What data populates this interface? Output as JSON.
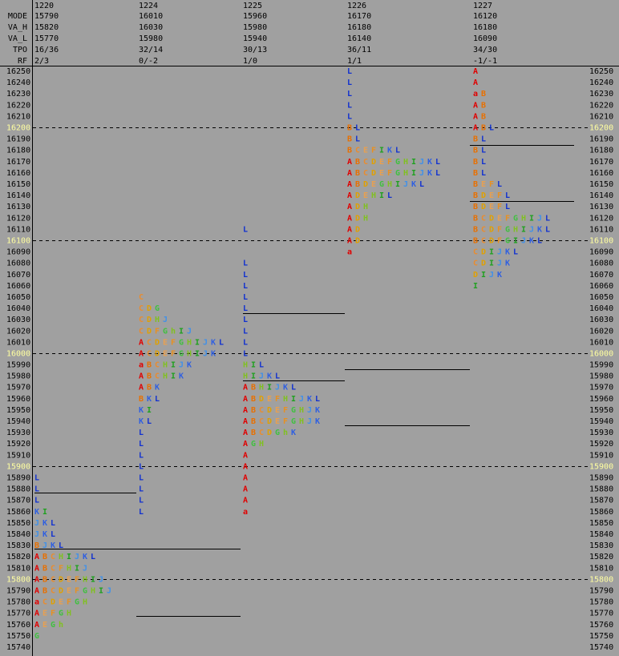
{
  "header": {
    "row_labels": [
      "MODE",
      "VA_H",
      "VA_L",
      "TPO",
      "RF"
    ],
    "days": [
      {
        "date": "1220",
        "values": [
          "15790",
          "15820",
          "15770",
          "16/36",
          "2/3"
        ]
      },
      {
        "date": "1224",
        "values": [
          "16010",
          "16030",
          "15980",
          "32/14",
          "0/-2"
        ]
      },
      {
        "date": "1225",
        "values": [
          "15960",
          "15980",
          "15940",
          "30/13",
          "1/0"
        ]
      },
      {
        "date": "1226",
        "values": [
          "16170",
          "16180",
          "16140",
          "36/11",
          "1/1"
        ]
      },
      {
        "date": "1227",
        "values": [
          "16120",
          "16180",
          "16090",
          "34/30",
          "-1/-1"
        ]
      }
    ]
  },
  "chart_data": {
    "type": "market-profile",
    "prices": [
      16250,
      16240,
      16230,
      16220,
      16210,
      16200,
      16190,
      16180,
      16170,
      16160,
      16150,
      16140,
      16130,
      16120,
      16110,
      16100,
      16090,
      16080,
      16070,
      16060,
      16050,
      16040,
      16030,
      16020,
      16010,
      16000,
      15990,
      15980,
      15970,
      15960,
      15950,
      15940,
      15930,
      15920,
      15910,
      15900,
      15890,
      15880,
      15870,
      15860,
      15850,
      15840,
      15830,
      15820,
      15810,
      15800,
      15790,
      15780,
      15770,
      15760,
      15750,
      15740
    ],
    "highlight": [
      16200,
      16100,
      16000,
      15900,
      15800
    ],
    "letter_colors": {
      "A": "#e00000",
      "B": "#e87000",
      "C": "#e88c30",
      "D": "#e0a000",
      "E": "#e8a050",
      "F": "#e89020",
      "G": "#40c040",
      "H": "#80c020",
      "I": "#20a020",
      "J": "#4090e8",
      "K": "#3060e0",
      "L": "#1030d0"
    },
    "profiles": [
      {
        "rows": [
          {
            "price": 15890,
            "tpo": [
              "L"
            ]
          },
          {
            "price": 15880,
            "tpo": [
              "L"
            ]
          },
          {
            "price": 15870,
            "tpo": [
              "L"
            ]
          },
          {
            "price": 15860,
            "tpo": [
              "K",
              "I"
            ]
          },
          {
            "price": 15850,
            "tpo": [
              "J",
              "K",
              "L"
            ]
          },
          {
            "price": 15840,
            "tpo": [
              "J",
              "K",
              "L"
            ]
          },
          {
            "price": 15830,
            "tpo": [
              "B",
              "J",
              "K",
              "L"
            ]
          },
          {
            "price": 15820,
            "tpo": [
              "A",
              "B",
              "C",
              "H",
              "I",
              "J",
              "K",
              "L"
            ]
          },
          {
            "price": 15810,
            "tpo": [
              "A",
              "B",
              "C",
              "F",
              "H",
              "I",
              "J"
            ]
          },
          {
            "price": 15800,
            "tpo": [
              "A",
              "B",
              "C",
              "D",
              "E",
              "F",
              "H",
              "I",
              "J"
            ]
          },
          {
            "price": 15790,
            "tpo": [
              "A",
              "B",
              "C",
              "D",
              "E",
              "F",
              "G",
              "H",
              "I",
              "J"
            ]
          },
          {
            "price": 15780,
            "tpo": [
              "a",
              "C",
              "D",
              "E",
              "F",
              "G",
              "H"
            ]
          },
          {
            "price": 15770,
            "tpo": [
              "A",
              "E",
              "F",
              "G",
              "H"
            ]
          },
          {
            "price": 15760,
            "tpo": [
              "A",
              "E",
              "G",
              "h"
            ]
          },
          {
            "price": 15750,
            "tpo": [
              "G"
            ]
          }
        ]
      },
      {
        "rows": [
          {
            "price": 16050,
            "tpo": [
              "C"
            ]
          },
          {
            "price": 16040,
            "tpo": [
              "C",
              "D",
              "G"
            ]
          },
          {
            "price": 16030,
            "tpo": [
              "C",
              "D",
              "H",
              "J"
            ]
          },
          {
            "price": 16020,
            "tpo": [
              "C",
              "D",
              "F",
              "G",
              "h",
              "I",
              "J"
            ]
          },
          {
            "price": 16010,
            "tpo": [
              "A",
              "C",
              "D",
              "E",
              "F",
              "G",
              "H",
              "I",
              "J",
              "K",
              "L"
            ]
          },
          {
            "price": 16000,
            "tpo": [
              "A",
              "C",
              "D",
              "E",
              "F",
              "G",
              "H",
              "I",
              "J",
              "K"
            ]
          },
          {
            "price": 15990,
            "tpo": [
              "a",
              "B",
              "C",
              "H",
              "I",
              "J",
              "K"
            ]
          },
          {
            "price": 15980,
            "tpo": [
              "A",
              "B",
              "C",
              "H",
              "I",
              "K"
            ]
          },
          {
            "price": 15970,
            "tpo": [
              "A",
              "B",
              "K"
            ]
          },
          {
            "price": 15960,
            "tpo": [
              "B",
              "K",
              "L"
            ]
          },
          {
            "price": 15950,
            "tpo": [
              "K",
              "I"
            ]
          },
          {
            "price": 15940,
            "tpo": [
              "K",
              "L"
            ]
          },
          {
            "price": 15930,
            "tpo": [
              "L"
            ]
          },
          {
            "price": 15920,
            "tpo": [
              "L"
            ]
          },
          {
            "price": 15910,
            "tpo": [
              "L"
            ]
          },
          {
            "price": 15900,
            "tpo": [
              "L"
            ]
          },
          {
            "price": 15890,
            "tpo": [
              "L"
            ]
          },
          {
            "price": 15880,
            "tpo": [
              "L"
            ]
          },
          {
            "price": 15870,
            "tpo": [
              "L"
            ]
          },
          {
            "price": 15860,
            "tpo": [
              "L"
            ]
          }
        ]
      },
      {
        "rows": [
          {
            "price": 16110,
            "tpo": [
              "L"
            ]
          },
          {
            "price": 16080,
            "tpo": [
              "L"
            ]
          },
          {
            "price": 16070,
            "tpo": [
              "L"
            ]
          },
          {
            "price": 16060,
            "tpo": [
              "L"
            ]
          },
          {
            "price": 16050,
            "tpo": [
              "L"
            ]
          },
          {
            "price": 16040,
            "tpo": [
              "L"
            ]
          },
          {
            "price": 16030,
            "tpo": [
              "L"
            ]
          },
          {
            "price": 16020,
            "tpo": [
              "L"
            ]
          },
          {
            "price": 16010,
            "tpo": [
              "L"
            ]
          },
          {
            "price": 16000,
            "tpo": [
              "L"
            ]
          },
          {
            "price": 15990,
            "tpo": [
              "H",
              "I",
              "L"
            ]
          },
          {
            "price": 15980,
            "tpo": [
              "H",
              "I",
              "J",
              "K",
              "L"
            ]
          },
          {
            "price": 15970,
            "tpo": [
              "A",
              "B",
              "H",
              "I",
              "J",
              "K",
              "L"
            ]
          },
          {
            "price": 15960,
            "tpo": [
              "A",
              "B",
              "D",
              "E",
              "F",
              "H",
              "I",
              "J",
              "K",
              "L"
            ]
          },
          {
            "price": 15950,
            "tpo": [
              "A",
              "B",
              "C",
              "D",
              "E",
              "F",
              "G",
              "H",
              "J",
              "K"
            ]
          },
          {
            "price": 15940,
            "tpo": [
              "A",
              "B",
              "C",
              "D",
              "E",
              "F",
              "G",
              "H",
              "J",
              "K"
            ]
          },
          {
            "price": 15930,
            "tpo": [
              "A",
              "B",
              "C",
              "D",
              "G",
              "h",
              "K"
            ]
          },
          {
            "price": 15920,
            "tpo": [
              "A",
              "G",
              "H"
            ]
          },
          {
            "price": 15910,
            "tpo": [
              "A"
            ]
          },
          {
            "price": 15900,
            "tpo": [
              "A"
            ]
          },
          {
            "price": 15890,
            "tpo": [
              "A"
            ]
          },
          {
            "price": 15880,
            "tpo": [
              "A"
            ]
          },
          {
            "price": 15870,
            "tpo": [
              "A"
            ]
          },
          {
            "price": 15860,
            "tpo": [
              "a"
            ]
          }
        ]
      },
      {
        "rows": [
          {
            "price": 16250,
            "tpo": [
              "L"
            ]
          },
          {
            "price": 16240,
            "tpo": [
              "L"
            ]
          },
          {
            "price": 16230,
            "tpo": [
              "L"
            ]
          },
          {
            "price": 16220,
            "tpo": [
              "L"
            ]
          },
          {
            "price": 16210,
            "tpo": [
              "L"
            ]
          },
          {
            "price": 16200,
            "tpo": [
              "B",
              "L"
            ]
          },
          {
            "price": 16190,
            "tpo": [
              "B",
              "L"
            ]
          },
          {
            "price": 16180,
            "tpo": [
              "B",
              "C",
              "E",
              "F",
              "I",
              "K",
              "L"
            ]
          },
          {
            "price": 16170,
            "tpo": [
              "A",
              "B",
              "C",
              "D",
              "E",
              "F",
              "G",
              "H",
              "I",
              "J",
              "K",
              "L"
            ]
          },
          {
            "price": 16160,
            "tpo": [
              "A",
              "B",
              "C",
              "D",
              "E",
              "F",
              "G",
              "H",
              "I",
              "J",
              "K",
              "L"
            ]
          },
          {
            "price": 16150,
            "tpo": [
              "A",
              "B",
              "D",
              "E",
              "G",
              "H",
              "I",
              "J",
              "K",
              "L"
            ]
          },
          {
            "price": 16140,
            "tpo": [
              "A",
              "D",
              "E",
              "H",
              "I",
              "L"
            ]
          },
          {
            "price": 16130,
            "tpo": [
              "A",
              "D",
              "H"
            ]
          },
          {
            "price": 16120,
            "tpo": [
              "A",
              "D",
              "H"
            ]
          },
          {
            "price": 16110,
            "tpo": [
              "A",
              "D"
            ]
          },
          {
            "price": 16100,
            "tpo": [
              "A",
              "D"
            ]
          },
          {
            "price": 16090,
            "tpo": [
              "a"
            ]
          }
        ]
      },
      {
        "rows": [
          {
            "price": 16250,
            "tpo": [
              "A"
            ]
          },
          {
            "price": 16240,
            "tpo": [
              "A"
            ]
          },
          {
            "price": 16230,
            "tpo": [
              "a",
              "B"
            ]
          },
          {
            "price": 16220,
            "tpo": [
              "A",
              "B"
            ]
          },
          {
            "price": 16210,
            "tpo": [
              "A",
              "B"
            ]
          },
          {
            "price": 16200,
            "tpo": [
              "A",
              "B",
              "L"
            ]
          },
          {
            "price": 16190,
            "tpo": [
              "B",
              "L"
            ]
          },
          {
            "price": 16180,
            "tpo": [
              "B",
              "L"
            ]
          },
          {
            "price": 16170,
            "tpo": [
              "B",
              "L"
            ]
          },
          {
            "price": 16160,
            "tpo": [
              "B",
              "L"
            ]
          },
          {
            "price": 16150,
            "tpo": [
              "B",
              "E",
              "F",
              "L"
            ]
          },
          {
            "price": 16140,
            "tpo": [
              "B",
              "D",
              "E",
              "F",
              "L"
            ]
          },
          {
            "price": 16130,
            "tpo": [
              "B",
              "D",
              "E",
              "F",
              "L"
            ]
          },
          {
            "price": 16120,
            "tpo": [
              "B",
              "C",
              "D",
              "E",
              "F",
              "G",
              "H",
              "I",
              "J",
              "L"
            ]
          },
          {
            "price": 16110,
            "tpo": [
              "B",
              "C",
              "D",
              "F",
              "G",
              "H",
              "I",
              "J",
              "K",
              "L"
            ]
          },
          {
            "price": 16100,
            "tpo": [
              "B",
              "C",
              "D",
              "F",
              "G",
              "I",
              "J",
              "K",
              "L"
            ]
          },
          {
            "price": 16090,
            "tpo": [
              "C",
              "D",
              "I",
              "J",
              "K",
              "L"
            ]
          },
          {
            "price": 16080,
            "tpo": [
              "C",
              "D",
              "I",
              "J",
              "K"
            ]
          },
          {
            "price": 16070,
            "tpo": [
              "D",
              "I",
              "J",
              "K"
            ]
          },
          {
            "price": 16060,
            "tpo": [
              "I"
            ]
          }
        ]
      }
    ]
  }
}
